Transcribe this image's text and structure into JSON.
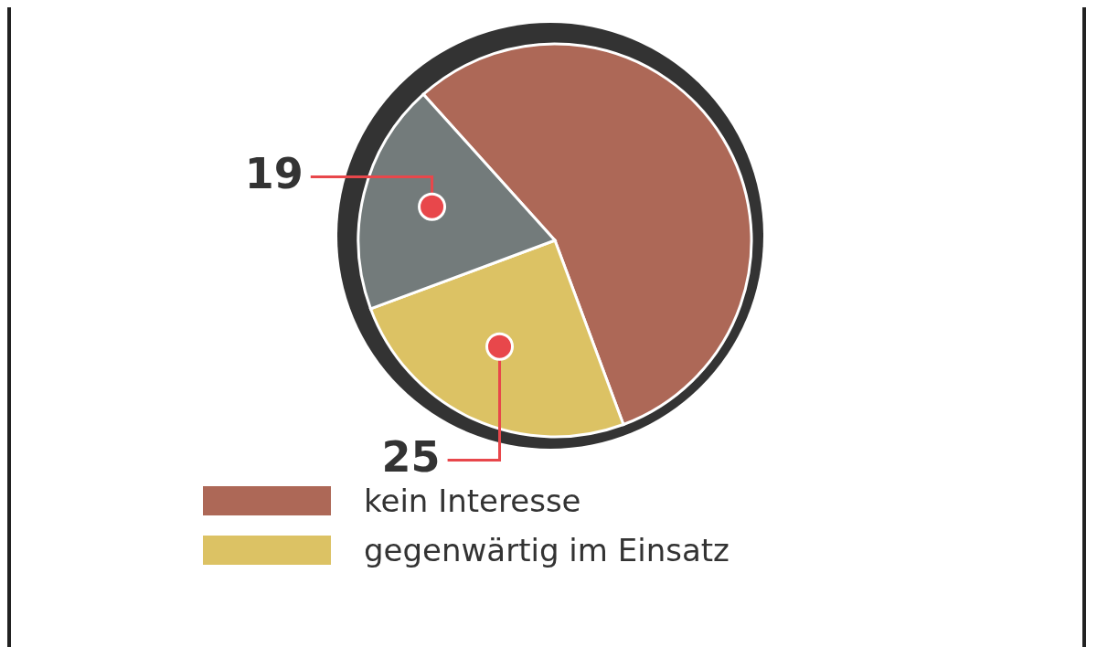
{
  "chart_data": {
    "type": "pie",
    "categories": [
      "kein Interesse",
      "gegenwärtig im Einsatz",
      null
    ],
    "values": [
      56,
      25,
      19
    ],
    "value_labels": [
      null,
      "25",
      "19"
    ],
    "colors": [
      "#ad6857",
      "#dcc264",
      "#737b7b"
    ],
    "legend": "bottom"
  }
}
